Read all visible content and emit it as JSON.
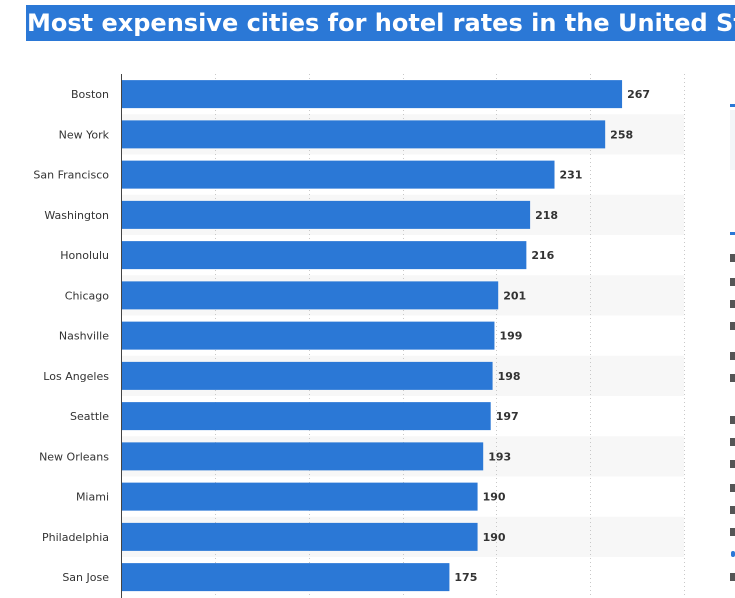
{
  "page": {
    "title": "Most expensive cities for hotel rates in the United States"
  },
  "colors": {
    "title_bg": "#2b78d6",
    "bar": "#2b78d6",
    "band": "#f7f7f7",
    "grid": "#c8c8c8",
    "axis": "#444444"
  },
  "chart_data": {
    "type": "bar",
    "orientation": "horizontal",
    "title": "Most expensive cities for hotel rates in the United States",
    "xlabel": "",
    "ylabel": "",
    "xlim": [
      0,
      300
    ],
    "grid": true,
    "data_labels": true,
    "categories": [
      "Boston",
      "New York",
      "San Francisco",
      "Washington",
      "Honolulu",
      "Chicago",
      "Nashville",
      "Los Angeles",
      "Seattle",
      "New Orleans",
      "Miami",
      "Philadelphia",
      "San Jose"
    ],
    "values": [
      267,
      258,
      231,
      218,
      216,
      201,
      199,
      198,
      197,
      193,
      190,
      190,
      175
    ]
  }
}
